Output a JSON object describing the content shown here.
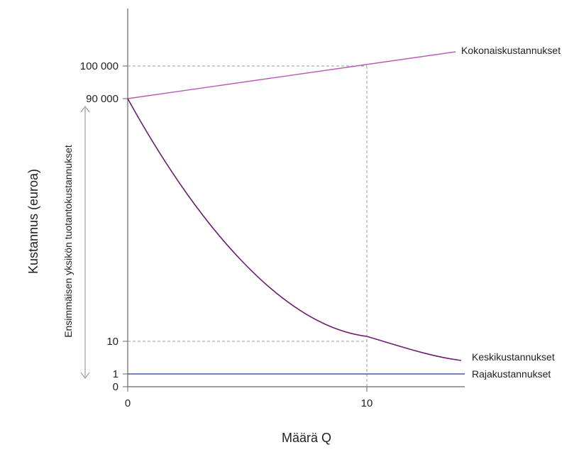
{
  "chart_data": {
    "type": "line",
    "title": "",
    "xlabel": "Määrä Q",
    "ylabel": "Kustannus (euroa)",
    "side_annotation": "Ensimmäisen yksikön tuotantokustannukset",
    "x_ticks": [
      {
        "value": 0,
        "label": "0"
      },
      {
        "value": 10,
        "label": "10"
      }
    ],
    "y_ticks": [
      {
        "key": "0",
        "label": "0"
      },
      {
        "key": "1",
        "label": "1"
      },
      {
        "key": "10",
        "label": "10"
      },
      {
        "key": "90000",
        "label": "90 000"
      },
      {
        "key": "100000",
        "label": "100 000"
      }
    ],
    "series": [
      {
        "name": "Kokonaiskustannukset",
        "color": "#b35bb8",
        "description": "rises linearly from 90 000 at Q=0 to 100 000 at Q=10"
      },
      {
        "name": "Keskikustannukset",
        "color": "#6a1f6e",
        "description": "falls steeply from 90 000 toward 10 at Q=10"
      },
      {
        "name": "Rajakustannukset",
        "color": "#4a56b0",
        "description": "constant at 1"
      }
    ],
    "reference_lines": [
      {
        "x": 10,
        "y": "100000"
      },
      {
        "x": 10,
        "y": "10"
      }
    ],
    "colors": {
      "axis": "#666666",
      "dashed": "#999999",
      "arrow": "#888888"
    }
  }
}
